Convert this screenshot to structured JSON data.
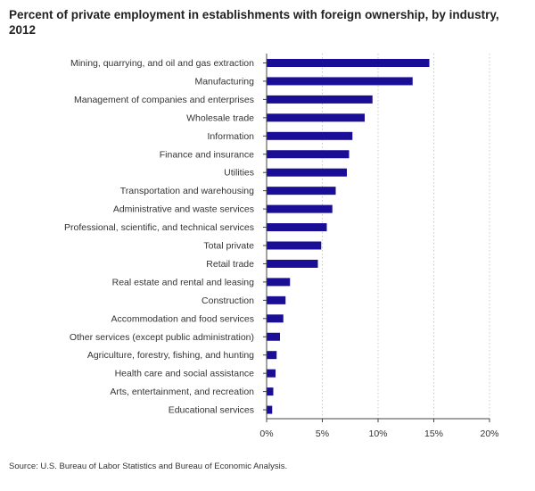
{
  "title": "Percent of private employment in establishments with foreign ownership, by industry, 2012",
  "source": "Source: U.S. Bureau of Labor Statistics and Bureau of Economic Analysis.",
  "colors": {
    "bar": "#1a0e96",
    "grid": "#c8c8c8",
    "axis": "#444444",
    "text": "#333333"
  },
  "chart_data": {
    "type": "bar",
    "orientation": "horizontal",
    "title": "Percent of private employment in establishments with foreign ownership, by industry, 2012",
    "xlabel": "",
    "ylabel": "",
    "xlim": [
      0,
      20
    ],
    "x_ticks": [
      0,
      5,
      10,
      15,
      20
    ],
    "x_tick_labels": [
      "0%",
      "5%",
      "10%",
      "15%",
      "20%"
    ],
    "grid": "vertical dotted",
    "categories": [
      "Mining, quarrying, and oil and gas extraction",
      "Manufacturing",
      "Management of companies and enterprises",
      "Wholesale trade",
      "Information",
      "Finance and insurance",
      "Utilities",
      "Transportation and warehousing",
      "Administrative and waste services",
      "Professional, scientific, and technical services",
      "Total private",
      "Retail trade",
      "Real estate and rental and leasing",
      "Construction",
      "Accommodation and food services",
      "Other services (except public administration)",
      "Agriculture, forestry, fishing, and hunting",
      "Health care and social assistance",
      "Arts, entertainment, and recreation",
      "Educational services"
    ],
    "values": [
      14.6,
      13.1,
      9.5,
      8.8,
      7.7,
      7.4,
      7.2,
      6.2,
      5.9,
      5.4,
      4.9,
      4.6,
      2.1,
      1.7,
      1.5,
      1.2,
      0.9,
      0.8,
      0.6,
      0.5
    ]
  }
}
